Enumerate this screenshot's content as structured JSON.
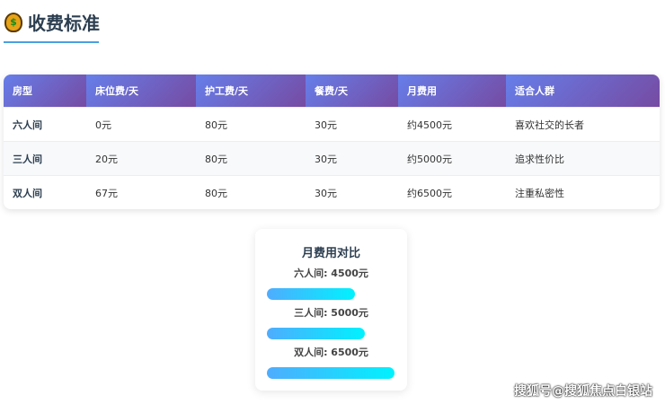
{
  "header": {
    "icon": "money-bag-icon",
    "title": "收费标准"
  },
  "table": {
    "columns": [
      "房型",
      "床位费/天",
      "护工费/天",
      "餐费/天",
      "月费用",
      "适合人群"
    ],
    "rows": [
      [
        "六人间",
        "0元",
        "80元",
        "30元",
        "约4500元",
        "喜欢社交的长者"
      ],
      [
        "三人间",
        "20元",
        "80元",
        "30元",
        "约5000元",
        "追求性价比"
      ],
      [
        "双人间",
        "67元",
        "80元",
        "30元",
        "约6500元",
        "注重私密性"
      ]
    ]
  },
  "chart_data": {
    "type": "bar",
    "title": "月费用对比",
    "categories": [
      "六人间",
      "三人间",
      "双人间"
    ],
    "values": [
      4500,
      5000,
      6500
    ],
    "labels": [
      "六人间: 4500元",
      "三人间: 5000元",
      "双人间: 6500元"
    ],
    "colors": [
      "#4facfe",
      "#00f2fe"
    ]
  },
  "watermark": "搜狐号@搜狐焦点白银站"
}
